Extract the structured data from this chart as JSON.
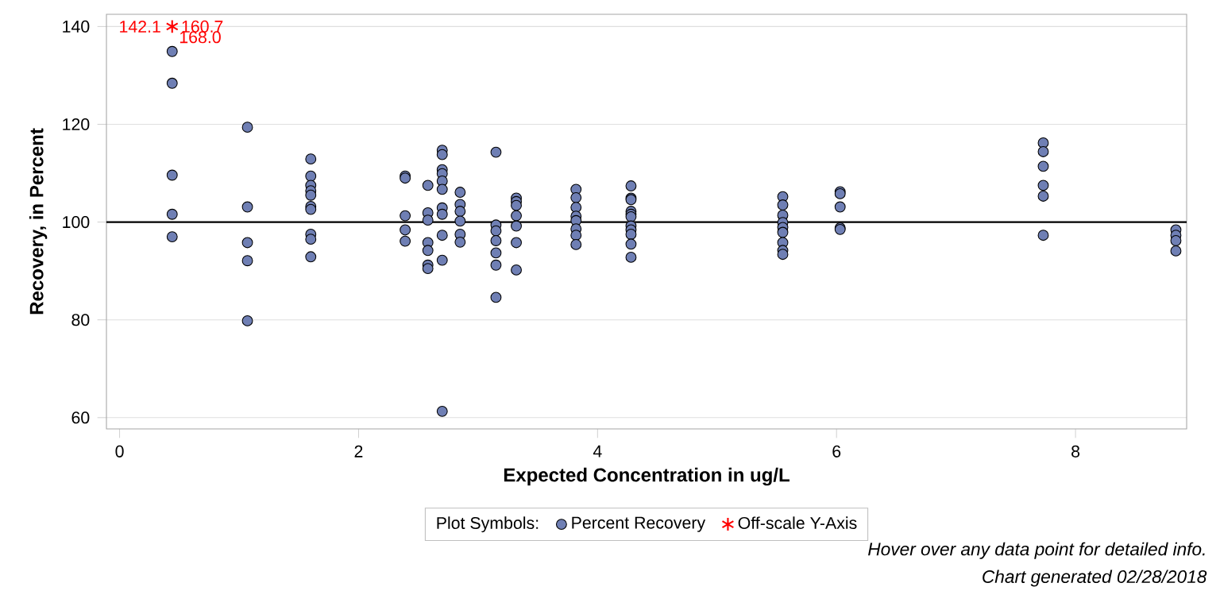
{
  "chart_data": {
    "type": "scatter",
    "xlabel": "Expected Concentration in ug/L",
    "ylabel": "Recovery, in Percent",
    "legend_title": "Plot Symbols:",
    "series": [
      {
        "name": "Percent Recovery",
        "color": "#6f7fb4",
        "marker": "circle",
        "x": [
          0.44,
          0.44,
          0.44,
          0.44,
          0.44,
          1.07,
          1.07,
          1.07,
          1.07,
          1.07,
          1.6,
          1.6,
          1.6,
          1.6,
          1.6,
          1.6,
          1.6,
          1.6,
          1.6,
          1.6,
          2.39,
          2.39,
          2.39,
          2.39,
          2.39,
          2.58,
          2.58,
          2.58,
          2.58,
          2.58,
          2.58,
          2.58,
          2.7,
          2.7,
          2.7,
          2.7,
          2.7,
          2.7,
          2.7,
          2.7,
          2.7,
          2.7,
          2.7,
          2.85,
          2.85,
          2.85,
          2.85,
          2.85,
          2.85,
          3.15,
          3.15,
          3.15,
          3.15,
          3.15,
          3.15,
          3.15,
          3.32,
          3.32,
          3.32,
          3.32,
          3.32,
          3.32,
          3.32,
          3.82,
          3.82,
          3.82,
          3.82,
          3.82,
          3.82,
          3.82,
          3.82,
          4.28,
          4.28,
          4.28,
          4.28,
          4.28,
          4.28,
          4.28,
          4.28,
          4.28,
          4.28,
          4.28,
          5.55,
          5.55,
          5.55,
          5.55,
          5.55,
          5.55,
          5.55,
          5.55,
          5.55,
          6.03,
          6.03,
          6.03,
          6.03,
          6.03,
          7.73,
          7.73,
          7.73,
          7.73,
          7.73,
          7.73,
          8.84,
          8.84,
          8.84,
          8.84
        ],
        "values": [
          134.9,
          128.4,
          109.6,
          101.6,
          97.0,
          119.4,
          103.1,
          95.8,
          92.1,
          79.8,
          112.9,
          109.4,
          107.5,
          106.4,
          105.5,
          103.2,
          102.6,
          97.5,
          96.5,
          92.9,
          109.4,
          109.0,
          101.3,
          98.4,
          96.1,
          107.5,
          101.9,
          100.4,
          95.8,
          94.2,
          91.2,
          90.5,
          114.7,
          113.8,
          110.7,
          109.9,
          108.4,
          106.7,
          102.9,
          101.6,
          97.3,
          92.2,
          61.3,
          106.1,
          103.6,
          102.2,
          100.2,
          97.5,
          95.9,
          114.3,
          99.4,
          98.2,
          96.2,
          93.7,
          91.2,
          84.6,
          104.9,
          104.2,
          103.4,
          101.3,
          99.2,
          95.8,
          90.2,
          106.7,
          105.0,
          103.0,
          101.2,
          100.3,
          98.6,
          97.3,
          95.4,
          107.4,
          104.9,
          104.6,
          102.2,
          101.6,
          101.1,
          99.2,
          98.4,
          97.5,
          95.5,
          92.8,
          105.2,
          103.5,
          101.4,
          99.9,
          98.9,
          97.9,
          95.8,
          94.2,
          93.4,
          106.2,
          105.8,
          103.1,
          98.8,
          98.5,
          116.2,
          114.4,
          111.4,
          107.5,
          105.3,
          97.3,
          98.4,
          97.3,
          96.2,
          94.1
        ]
      },
      {
        "name": "Off-scale Y-Axis",
        "color": "#ff0000",
        "marker": "cross",
        "x": [
          0.44
        ],
        "values": [
          140
        ]
      }
    ],
    "xlim": [
      -0.11,
      8.93
    ],
    "ylim": [
      57.7,
      142.5
    ],
    "xticks": [
      0,
      2,
      4,
      6,
      8
    ],
    "yticks": [
      60,
      80,
      100,
      120,
      140
    ],
    "grid": "y",
    "legend": "bottom",
    "ref_lines": [
      {
        "axis": "y",
        "value": 100,
        "color": "#000000"
      }
    ],
    "annotations": [
      {
        "text": "142.1"
      },
      {
        "text": "160.7"
      },
      {
        "text": "168.0"
      },
      "Hover over any data point for detailed info.",
      "Chart generated 02/28/2018"
    ]
  }
}
